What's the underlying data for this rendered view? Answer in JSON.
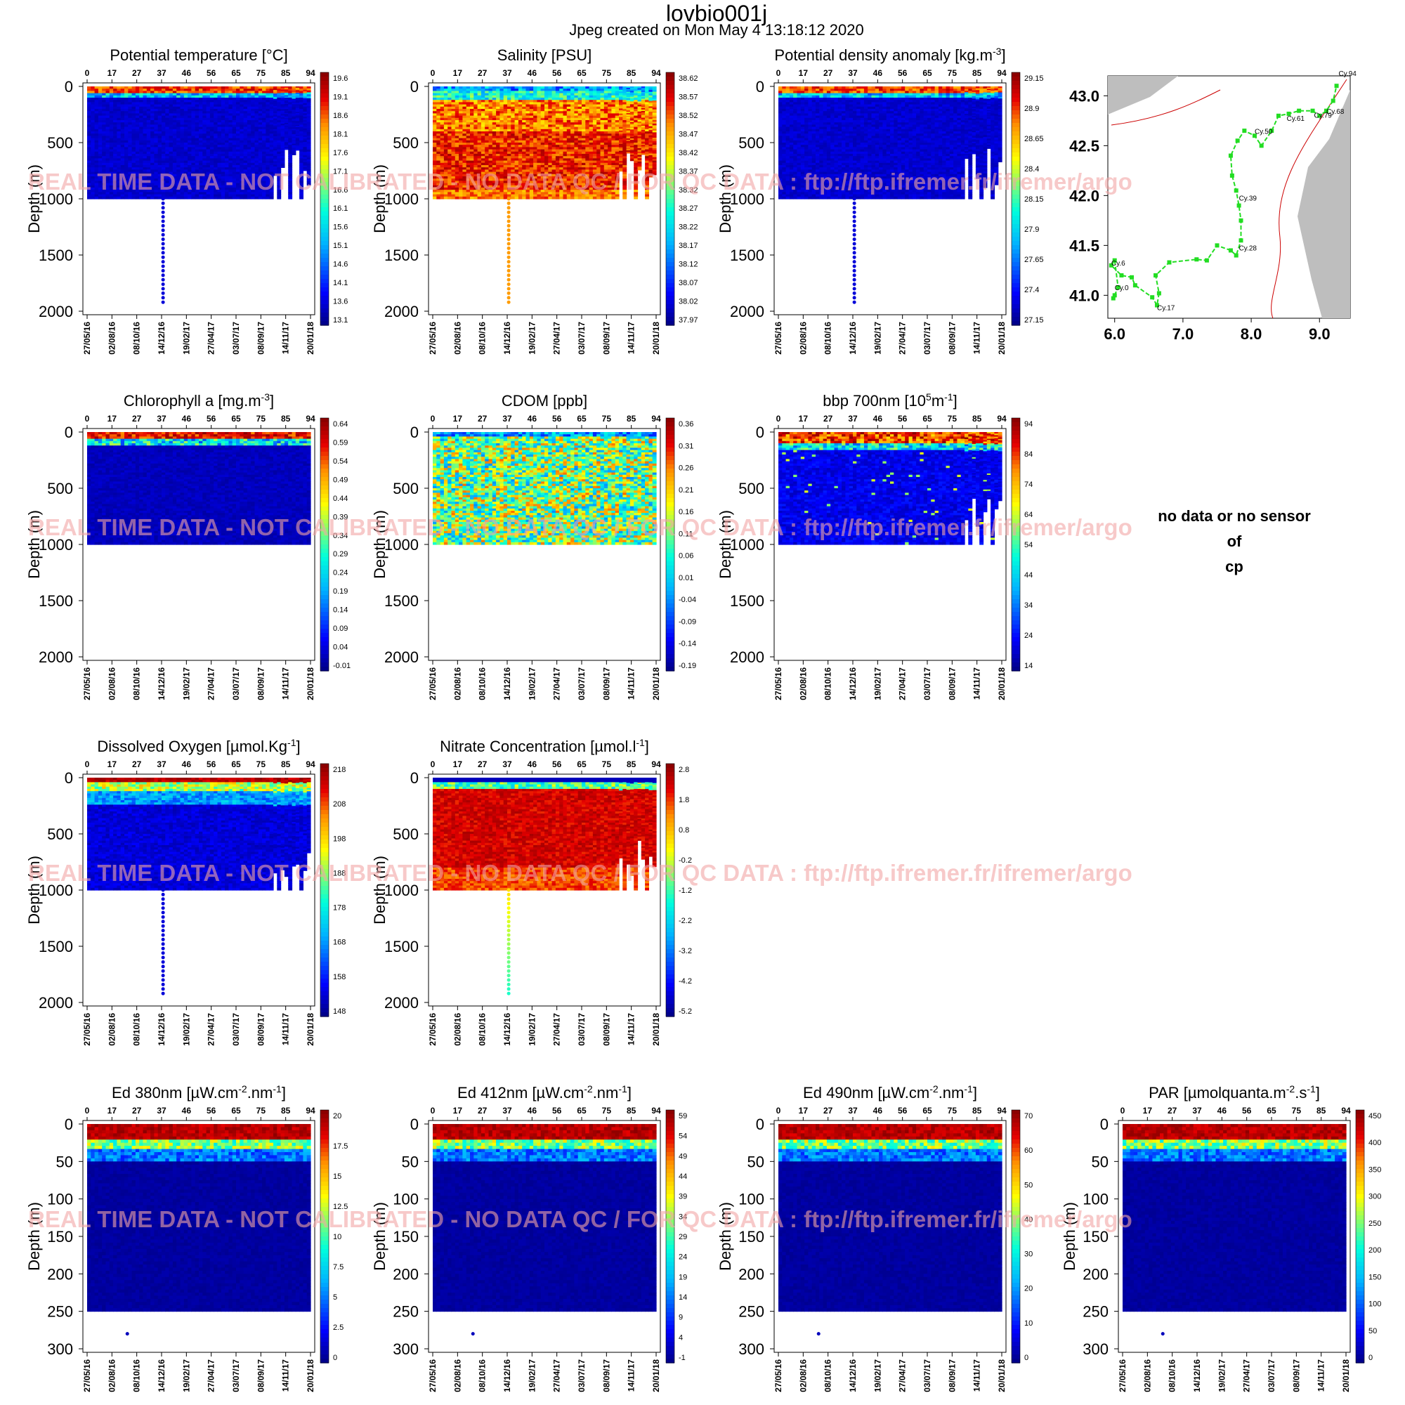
{
  "figure": {
    "title": "lovbio001j",
    "subtitle": "Jpeg created on  Mon May  4 13:18:12 2020",
    "watermark": "REAL TIME DATA - NOT CALIBRATED - NO DATA QC  /  FOR QC DATA : ftp://ftp.ifremer.fr/ifremer/argo",
    "ylabel": "Depth (m)",
    "nodata_message": [
      "no data or no sensor",
      "of",
      "cp"
    ],
    "colors": {
      "deep": "#00008b",
      "mid": "#00bfff",
      "surface": "#8b0000",
      "map_land": "#bebebe",
      "track": "#22dd22",
      "coast": "#cc0000"
    }
  },
  "chart_data": [
    {
      "type": "heatmap",
      "title": "Potential temperature [°C]",
      "cycles_top": [
        "0",
        "17",
        "27",
        "37",
        "46",
        "56",
        "65",
        "75",
        "85",
        "94"
      ],
      "dates_bottom": [
        "27/05/16",
        "02/08/16",
        "08/10/16",
        "14/12/16",
        "19/02/17",
        "27/04/17",
        "03/07/17",
        "08/09/17",
        "14/11/17",
        "20/01/18"
      ],
      "y_ticks": [
        "0",
        "500",
        "1000",
        "1500",
        "2000"
      ],
      "ylim": [
        0,
        2000
      ],
      "colorbar_ticks": [
        "19.6",
        "19.1",
        "18.6",
        "18.1",
        "17.6",
        "17.1",
        "16.6",
        "16.1",
        "15.6",
        "15.1",
        "14.6",
        "14.1",
        "13.6",
        "13.1"
      ],
      "palette": "temperature"
    },
    {
      "type": "heatmap",
      "title": "Salinity [PSU]",
      "cycles_top": [
        "0",
        "17",
        "27",
        "37",
        "46",
        "56",
        "65",
        "75",
        "85",
        "94"
      ],
      "dates_bottom": [
        "27/05/16",
        "02/08/16",
        "08/10/16",
        "14/12/16",
        "19/02/17",
        "27/04/17",
        "03/07/17",
        "08/09/17",
        "14/11/17",
        "20/01/18"
      ],
      "y_ticks": [
        "0",
        "500",
        "1000",
        "1500",
        "2000"
      ],
      "ylim": [
        0,
        2000
      ],
      "colorbar_ticks": [
        "38.62",
        "38.57",
        "38.52",
        "38.47",
        "38.42",
        "38.37",
        "38.32",
        "38.27",
        "38.22",
        "38.17",
        "38.12",
        "38.07",
        "38.02",
        "37.97"
      ],
      "palette": "salinity"
    },
    {
      "type": "heatmap",
      "title": "Potential density anomaly [kg.m",
      "title_sup": "-3",
      "title_end": "]",
      "cycles_top": [
        "0",
        "17",
        "27",
        "37",
        "46",
        "56",
        "65",
        "75",
        "85",
        "94"
      ],
      "dates_bottom": [
        "27/05/16",
        "02/08/16",
        "08/10/16",
        "14/12/16",
        "19/02/17",
        "27/04/17",
        "03/07/17",
        "08/09/17",
        "14/11/17",
        "20/01/18"
      ],
      "y_ticks": [
        "0",
        "500",
        "1000",
        "1500",
        "2000"
      ],
      "ylim": [
        0,
        2000
      ],
      "colorbar_ticks": [
        "29.15",
        "28.9",
        "28.65",
        "28.4",
        "28.15",
        "27.9",
        "27.65",
        "27.4",
        "27.15"
      ],
      "palette": "temperature"
    },
    {
      "type": "map",
      "x_ticks": [
        "6.0",
        "7.0",
        "8.0",
        "9.0"
      ],
      "y_ticks": [
        "43.0",
        "42.5",
        "42.0",
        "41.5",
        "41.0"
      ],
      "xlim": [
        5.9,
        9.45
      ],
      "ylim": [
        40.77,
        43.2
      ],
      "track": [
        [
          6.0,
          41.0
        ],
        [
          5.98,
          40.97
        ],
        [
          6.05,
          41.08
        ],
        [
          6.0,
          41.35
        ],
        [
          5.95,
          41.3
        ],
        [
          6.1,
          41.2
        ],
        [
          6.25,
          41.18
        ],
        [
          6.3,
          41.1
        ],
        [
          6.55,
          40.98
        ],
        [
          6.62,
          40.9
        ],
        [
          6.65,
          41.02
        ],
        [
          6.6,
          41.2
        ],
        [
          6.8,
          41.33
        ],
        [
          7.2,
          41.36
        ],
        [
          7.35,
          41.35
        ],
        [
          7.5,
          41.5
        ],
        [
          7.7,
          41.45
        ],
        [
          7.78,
          41.4
        ],
        [
          7.85,
          41.55
        ],
        [
          7.85,
          41.75
        ],
        [
          7.82,
          41.9
        ],
        [
          7.78,
          42.05
        ],
        [
          7.72,
          42.2
        ],
        [
          7.7,
          42.4
        ],
        [
          7.8,
          42.55
        ],
        [
          7.9,
          42.65
        ],
        [
          8.05,
          42.6
        ],
        [
          8.15,
          42.5
        ],
        [
          8.3,
          42.65
        ],
        [
          8.4,
          42.8
        ],
        [
          8.55,
          42.82
        ],
        [
          8.7,
          42.85
        ],
        [
          8.9,
          42.85
        ],
        [
          9.0,
          42.8
        ],
        [
          9.1,
          42.85
        ],
        [
          9.2,
          42.95
        ],
        [
          9.25,
          43.1
        ]
      ],
      "cycle_labels": [
        {
          "label": "Cy.0",
          "lon": 6.0,
          "lat": 41.05
        },
        {
          "label": "Cy.6",
          "lon": 5.95,
          "lat": 41.3
        },
        {
          "label": "Cy.17",
          "lon": 6.62,
          "lat": 40.85
        },
        {
          "label": "Cy.28",
          "lon": 7.82,
          "lat": 41.45
        },
        {
          "label": "Cy.39",
          "lon": 7.82,
          "lat": 41.95
        },
        {
          "label": "Cy.50",
          "lon": 8.05,
          "lat": 42.62
        },
        {
          "label": "Cy.61",
          "lon": 8.52,
          "lat": 42.75
        },
        {
          "label": "Cy.68",
          "lon": 9.1,
          "lat": 42.82
        },
        {
          "label": "Cy.79",
          "lon": 8.92,
          "lat": 42.78
        },
        {
          "label": "Cy.94",
          "lon": 9.28,
          "lat": 43.2
        }
      ]
    },
    {
      "type": "heatmap",
      "title": "Chlorophyll a [mg.m",
      "title_sup": "-3",
      "title_end": "]",
      "cycles_top": [
        "0",
        "17",
        "27",
        "37",
        "46",
        "56",
        "65",
        "75",
        "85",
        "94"
      ],
      "dates_bottom": [
        "27/05/16",
        "02/08/16",
        "08/10/16",
        "14/12/16",
        "19/02/17",
        "27/04/17",
        "03/07/17",
        "08/09/17",
        "14/11/17",
        "20/01/18"
      ],
      "y_ticks": [
        "0",
        "500",
        "1000",
        "1500",
        "2000"
      ],
      "ylim": [
        0,
        2000
      ],
      "colorbar_ticks": [
        "0.64",
        "0.59",
        "0.54",
        "0.49",
        "0.44",
        "0.39",
        "0.34",
        "0.29",
        "0.24",
        "0.19",
        "0.14",
        "0.09",
        "0.04",
        "-0.01"
      ],
      "palette": "chl"
    },
    {
      "type": "heatmap",
      "title": "CDOM  [ppb]",
      "cycles_top": [
        "0",
        "17",
        "27",
        "37",
        "46",
        "56",
        "65",
        "75",
        "85",
        "94"
      ],
      "dates_bottom": [
        "27/05/16",
        "02/08/16",
        "08/10/16",
        "14/12/16",
        "19/02/17",
        "27/04/17",
        "03/07/17",
        "08/09/17",
        "14/11/17",
        "20/01/18"
      ],
      "y_ticks": [
        "0",
        "500",
        "1000",
        "1500",
        "2000"
      ],
      "ylim": [
        0,
        2000
      ],
      "colorbar_ticks": [
        "0.36",
        "0.31",
        "0.26",
        "0.21",
        "0.16",
        "0.11",
        "0.06",
        "0.01",
        "-0.04",
        "-0.09",
        "-0.14",
        "-0.19"
      ],
      "palette": "cdom"
    },
    {
      "type": "heatmap",
      "title": "bbp 700nm [10",
      "title_sup": "5",
      "title_mid": "m",
      "title_sup2": "-1",
      "title_end": "]",
      "cycles_top": [
        "0",
        "17",
        "27",
        "37",
        "46",
        "56",
        "65",
        "75",
        "85",
        "94"
      ],
      "dates_bottom": [
        "27/05/16",
        "02/08/16",
        "08/10/16",
        "14/12/16",
        "19/02/17",
        "27/04/17",
        "03/07/17",
        "08/09/17",
        "14/11/17",
        "20/01/18"
      ],
      "y_ticks": [
        "0",
        "500",
        "1000",
        "1500",
        "2000"
      ],
      "ylim": [
        0,
        2000
      ],
      "colorbar_ticks": [
        "94",
        "84",
        "74",
        "64",
        "54",
        "44",
        "34",
        "24",
        "14"
      ],
      "palette": "bbp"
    },
    {
      "type": "heatmap",
      "title": "Dissolved Oxygen [µmol.Kg",
      "title_sup": "-1",
      "title_end": "]",
      "cycles_top": [
        "0",
        "17",
        "27",
        "37",
        "46",
        "56",
        "65",
        "75",
        "85",
        "94"
      ],
      "dates_bottom": [
        "27/05/16",
        "02/08/16",
        "08/10/16",
        "14/12/16",
        "19/02/17",
        "27/04/17",
        "03/07/17",
        "08/09/17",
        "14/11/17",
        "20/01/18"
      ],
      "y_ticks": [
        "0",
        "500",
        "1000",
        "1500",
        "2000"
      ],
      "ylim": [
        0,
        2000
      ],
      "colorbar_ticks": [
        "218",
        "208",
        "198",
        "188",
        "178",
        "168",
        "158",
        "148"
      ],
      "palette": "oxygen"
    },
    {
      "type": "heatmap",
      "title": "Nitrate Concentration [µmol.l",
      "title_sup": "-1",
      "title_end": "]",
      "cycles_top": [
        "0",
        "17",
        "27",
        "37",
        "46",
        "56",
        "65",
        "75",
        "85",
        "94"
      ],
      "dates_bottom": [
        "27/05/16",
        "02/08/16",
        "08/10/16",
        "14/12/16",
        "19/02/17",
        "27/04/17",
        "03/07/17",
        "08/09/17",
        "14/11/17",
        "20/01/18"
      ],
      "y_ticks": [
        "0",
        "500",
        "1000",
        "1500",
        "2000"
      ],
      "ylim": [
        0,
        2000
      ],
      "colorbar_ticks": [
        "2.8",
        "1.8",
        "0.8",
        "-0.2",
        "-1.2",
        "-2.2",
        "-3.2",
        "-4.2",
        "-5.2"
      ],
      "palette": "nitrate"
    },
    {
      "type": "heatmap",
      "title": "Ed 380nm [µW.cm",
      "title_sup": "-2",
      "title_mid": ".nm",
      "title_sup2": "-1",
      "title_end": "]",
      "cycles_top": [
        "0",
        "17",
        "27",
        "37",
        "46",
        "56",
        "65",
        "75",
        "85",
        "94"
      ],
      "dates_bottom": [
        "27/05/16",
        "02/08/16",
        "08/10/16",
        "14/12/16",
        "19/02/17",
        "27/04/17",
        "03/07/17",
        "08/09/17",
        "14/11/17",
        "20/01/18"
      ],
      "y_ticks": [
        "0",
        "50",
        "100",
        "150",
        "200",
        "250",
        "300"
      ],
      "ylim": [
        0,
        300
      ],
      "colorbar_ticks": [
        "20",
        "17.5",
        "15",
        "12.5",
        "10",
        "7.5",
        "5",
        "2.5",
        "0"
      ],
      "palette": "light"
    },
    {
      "type": "heatmap",
      "title": "Ed 412nm [µW.cm",
      "title_sup": "-2",
      "title_mid": ".nm",
      "title_sup2": "-1",
      "title_end": "]",
      "cycles_top": [
        "0",
        "17",
        "27",
        "37",
        "46",
        "56",
        "65",
        "75",
        "85",
        "94"
      ],
      "dates_bottom": [
        "27/05/16",
        "02/08/16",
        "08/10/16",
        "14/12/16",
        "19/02/17",
        "27/04/17",
        "03/07/17",
        "08/09/17",
        "14/11/17",
        "20/01/18"
      ],
      "y_ticks": [
        "0",
        "50",
        "100",
        "150",
        "200",
        "250",
        "300"
      ],
      "ylim": [
        0,
        300
      ],
      "colorbar_ticks": [
        "59",
        "54",
        "49",
        "44",
        "39",
        "34",
        "29",
        "24",
        "19",
        "14",
        "9",
        "4",
        "-1"
      ],
      "palette": "light"
    },
    {
      "type": "heatmap",
      "title": "Ed 490nm [µW.cm",
      "title_sup": "-2",
      "title_mid": ".nm",
      "title_sup2": "-1",
      "title_end": "]",
      "cycles_top": [
        "0",
        "17",
        "27",
        "37",
        "46",
        "56",
        "65",
        "75",
        "85",
        "94"
      ],
      "dates_bottom": [
        "27/05/16",
        "02/08/16",
        "08/10/16",
        "14/12/16",
        "19/02/17",
        "27/04/17",
        "03/07/17",
        "08/09/17",
        "14/11/17",
        "20/01/18"
      ],
      "y_ticks": [
        "0",
        "50",
        "100",
        "150",
        "200",
        "250",
        "300"
      ],
      "ylim": [
        0,
        300
      ],
      "colorbar_ticks": [
        "70",
        "60",
        "50",
        "40",
        "30",
        "20",
        "10",
        "0"
      ],
      "palette": "light"
    },
    {
      "type": "heatmap",
      "title": "PAR [µmolquanta.m",
      "title_sup": "-2",
      "title_mid": ".s",
      "title_sup2": "-1",
      "title_end": "]",
      "cycles_top": [
        "0",
        "17",
        "27",
        "37",
        "46",
        "56",
        "65",
        "75",
        "85",
        "94"
      ],
      "dates_bottom": [
        "27/05/16",
        "02/08/16",
        "08/10/16",
        "14/12/16",
        "19/02/17",
        "27/04/17",
        "03/07/17",
        "08/09/17",
        "14/11/17",
        "20/01/18"
      ],
      "y_ticks": [
        "0",
        "50",
        "100",
        "150",
        "200",
        "250",
        "300"
      ],
      "ylim": [
        0,
        300
      ],
      "colorbar_ticks": [
        "450",
        "400",
        "350",
        "300",
        "250",
        "200",
        "150",
        "100",
        "50",
        "0"
      ],
      "palette": "light"
    }
  ]
}
